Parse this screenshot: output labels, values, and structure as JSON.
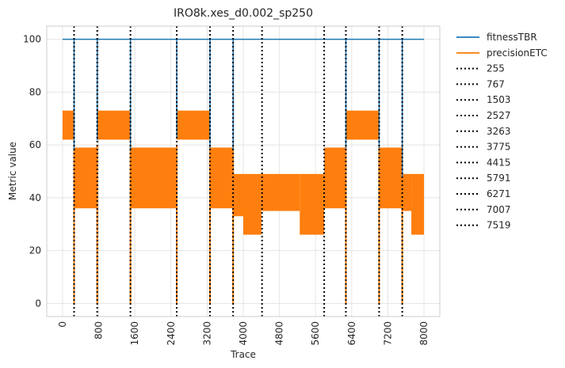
{
  "chart_data": {
    "type": "line",
    "title": "IRO8k.xes_d0.002_sp250",
    "xlabel": "Trace",
    "ylabel": "Metric value",
    "xlim": [
      -350,
      8350
    ],
    "ylim": [
      -5,
      105
    ],
    "xticks": [
      0,
      800,
      1600,
      2400,
      3200,
      4000,
      4800,
      5600,
      6400,
      7200,
      8000
    ],
    "xtick_labels": [
      "0",
      "800",
      "1600",
      "2400",
      "3200",
      "4000",
      "4800",
      "5600",
      "6400",
      "7200",
      "8000"
    ],
    "yticks": [
      0,
      20,
      40,
      60,
      80,
      100
    ],
    "ytick_labels": [
      "0",
      "20",
      "40",
      "60",
      "80",
      "100"
    ],
    "grid": true,
    "legend_placement": "outside-right",
    "series": [
      {
        "name": "fitnessTBR",
        "color": "#1f77b4",
        "x": [
          0,
          255,
          255,
          256,
          256,
          767,
          767,
          768,
          768,
          1503,
          1503,
          1504,
          1504,
          2527,
          2527,
          2528,
          2528,
          3263,
          3263,
          3264,
          3264,
          3775,
          3775,
          3776,
          3776,
          6271,
          6271,
          6272,
          6272,
          7007,
          7007,
          7008,
          7008,
          7519,
          7519,
          7520,
          7520,
          8000
        ],
        "y": [
          100,
          100,
          58,
          58,
          100,
          100,
          62,
          62,
          100,
          100,
          58,
          58,
          100,
          100,
          63,
          63,
          100,
          100,
          59,
          59,
          100,
          100,
          58,
          58,
          100,
          100,
          59,
          59,
          100,
          100,
          59,
          59,
          100,
          100,
          48,
          48,
          100,
          100
        ]
      },
      {
        "name": "precisionETC",
        "color": "#ff7f0e",
        "bands": [
          {
            "x0": 0,
            "x1": 255,
            "low": 62,
            "high": 73
          },
          {
            "x0": 256,
            "x1": 767,
            "low": 36,
            "high": 59
          },
          {
            "x0": 768,
            "x1": 1503,
            "low": 62,
            "high": 73
          },
          {
            "x0": 1504,
            "x1": 2527,
            "low": 36,
            "high": 59
          },
          {
            "x0": 2528,
            "x1": 3263,
            "low": 62,
            "high": 73
          },
          {
            "x0": 3264,
            "x1": 3775,
            "low": 36,
            "high": 59
          },
          {
            "x0": 3776,
            "x1": 4000,
            "low": 33,
            "high": 49
          },
          {
            "x0": 4000,
            "x1": 4400,
            "low": 26,
            "high": 49
          },
          {
            "x0": 4400,
            "x1": 5250,
            "low": 35,
            "high": 49
          },
          {
            "x0": 5250,
            "x1": 5791,
            "low": 26,
            "high": 49
          },
          {
            "x0": 5792,
            "x1": 6271,
            "low": 36,
            "high": 59
          },
          {
            "x0": 6272,
            "x1": 7007,
            "low": 62,
            "high": 73
          },
          {
            "x0": 7008,
            "x1": 7519,
            "low": 36,
            "high": 59
          },
          {
            "x0": 7520,
            "x1": 7720,
            "low": 35,
            "high": 49
          },
          {
            "x0": 7720,
            "x1": 8000,
            "low": 26,
            "high": 49
          }
        ],
        "drops_to_zero_at": [
          255,
          767,
          1503,
          2527,
          3263,
          3775,
          6271,
          7007,
          7519
        ]
      }
    ],
    "vlines": {
      "color": "#000000",
      "style": "dotted",
      "x": [
        255,
        767,
        1503,
        2527,
        3263,
        3775,
        4415,
        5791,
        6271,
        7007,
        7519
      ],
      "labels": [
        "255",
        "767",
        "1503",
        "2527",
        "3263",
        "3775",
        "4415",
        "5791",
        "6271",
        "7007",
        "7519"
      ]
    }
  }
}
